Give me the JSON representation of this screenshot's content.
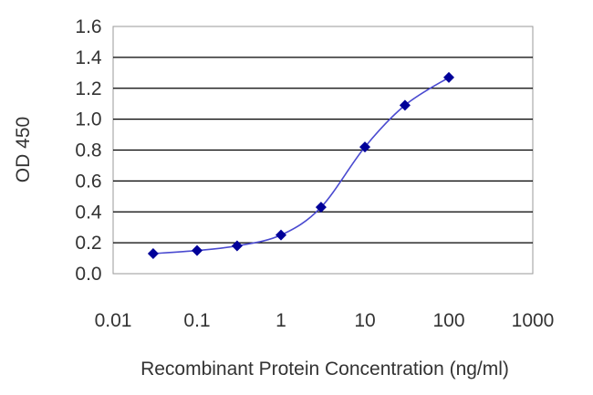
{
  "chart_data": {
    "type": "line",
    "title": "",
    "xlabel": "Recombinant Protein Concentration (ng/ml)",
    "ylabel": "OD 450",
    "x_scale": "log",
    "xlim": [
      0.01,
      1000
    ],
    "ylim": [
      0.0,
      1.6
    ],
    "x_ticks": [
      0.01,
      0.1,
      1,
      10,
      100,
      1000
    ],
    "x_tick_labels": [
      "0.01",
      "0.1",
      "1",
      "10",
      "100",
      "1000"
    ],
    "y_ticks": [
      0.0,
      0.2,
      0.4,
      0.6,
      0.8,
      1.0,
      1.2,
      1.4,
      1.6
    ],
    "y_tick_labels": [
      "0.0",
      "0.2",
      "0.4",
      "0.6",
      "0.8",
      "1.0",
      "1.2",
      "1.4",
      "1.6"
    ],
    "grid": "horizontal",
    "series": [
      {
        "x": [
          0.03,
          0.1,
          0.3,
          1,
          3,
          10,
          30,
          100
        ],
        "y": [
          0.13,
          0.15,
          0.18,
          0.25,
          0.43,
          0.82,
          1.09,
          1.27
        ]
      }
    ],
    "colors": {
      "line": "#4a4ad0",
      "marker": "#000099",
      "grid": "#000000",
      "plot_border": "#999999"
    }
  }
}
